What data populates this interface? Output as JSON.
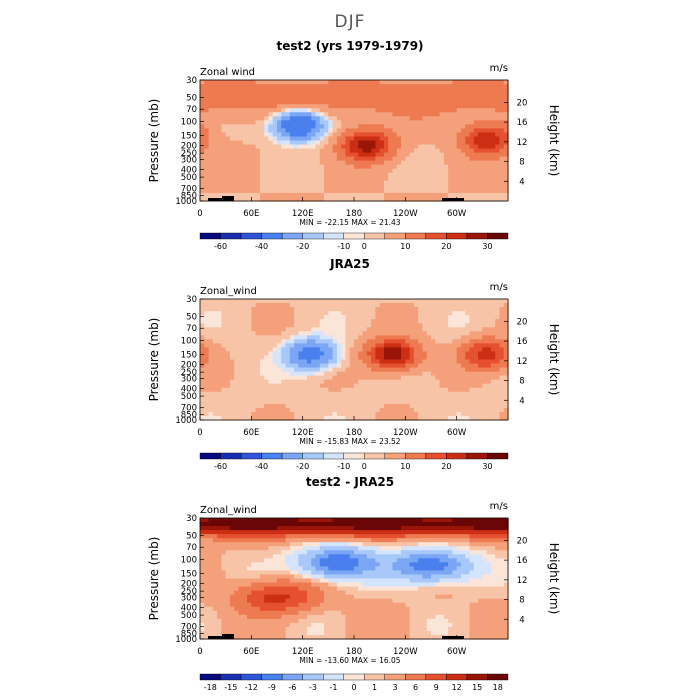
{
  "figure": {
    "title": "DJF"
  },
  "chart_data": [
    {
      "type": "heatmap",
      "title": "test2 (yrs 1979-1979)",
      "left_label": "Zonal wind",
      "units": "m/s",
      "stats": "MIN = -22.15   MAX =  21.43",
      "ylabel": "Pressure (mb)",
      "ylabel_right": "Height (km)",
      "x_ticks": [
        "0",
        "60E",
        "120E",
        "180",
        "120W",
        "60W"
      ],
      "y_ticks": [
        "30",
        "50",
        "70",
        "100",
        "150",
        "200",
        "250",
        "300",
        "400",
        "500",
        "700",
        "850",
        "1000"
      ],
      "height_ticks": [
        "4",
        "8",
        "12",
        "16",
        "20"
      ],
      "colorbar_labels": [
        "-60",
        "-40",
        "-20",
        "-10",
        "0",
        "10",
        "20",
        "30"
      ],
      "colorbar_colors": [
        "#08087f",
        "#1a2fb0",
        "#2d55d6",
        "#4a7fee",
        "#7aa6f4",
        "#a8c8fa",
        "#d4e4fc",
        "#fbe5d8",
        "#f8c4a8",
        "#f4a07a",
        "#ee7a52",
        "#e55030",
        "#cc2e15",
        "#9a1508",
        "#6a0606"
      ],
      "x_range": [
        0,
        360
      ],
      "y_range_mb": [
        1000,
        30
      ],
      "features": [
        {
          "kind": "min",
          "x": 115,
          "p": 110,
          "value": -22
        },
        {
          "kind": "max",
          "x": 195,
          "p": 200,
          "value": 21
        },
        {
          "kind": "max",
          "x": 335,
          "p": 170,
          "value": 18
        }
      ]
    },
    {
      "type": "heatmap",
      "title": "JRA25",
      "left_label": "Zonal_wind",
      "units": "m/s",
      "stats": "MIN = -15.83   MAX =  23.52",
      "ylabel": "Pressure (mb)",
      "ylabel_right": "Height (km)",
      "x_ticks": [
        "0",
        "60E",
        "120E",
        "180",
        "120W",
        "60W"
      ],
      "y_ticks": [
        "30",
        "50",
        "70",
        "100",
        "150",
        "200",
        "250",
        "300",
        "400",
        "500",
        "700",
        "850",
        "1000"
      ],
      "height_ticks": [
        "4",
        "8",
        "12",
        "16",
        "20"
      ],
      "colorbar_labels": [
        "-60",
        "-40",
        "-20",
        "-10",
        "0",
        "10",
        "20",
        "30"
      ],
      "colorbar_colors": [
        "#08087f",
        "#1a2fb0",
        "#2d55d6",
        "#4a7fee",
        "#7aa6f4",
        "#a8c8fa",
        "#d4e4fc",
        "#fbe5d8",
        "#f8c4a8",
        "#f4a07a",
        "#ee7a52",
        "#e55030",
        "#cc2e15",
        "#9a1508",
        "#6a0606"
      ],
      "x_range": [
        0,
        360
      ],
      "y_range_mb": [
        1000,
        30
      ],
      "features": [
        {
          "kind": "min",
          "x": 130,
          "p": 150,
          "value": -15
        },
        {
          "kind": "max",
          "x": 225,
          "p": 150,
          "value": 23
        },
        {
          "kind": "max",
          "x": 335,
          "p": 150,
          "value": 16
        }
      ]
    },
    {
      "type": "heatmap",
      "title": "test2 - JRA25",
      "left_label": "Zonal_wind",
      "units": "m/s",
      "stats": "MIN = -13.60   MAX =  16.05",
      "ylabel": "Pressure (mb)",
      "ylabel_right": "Height (km)",
      "x_ticks": [
        "0",
        "60E",
        "120E",
        "180",
        "120W",
        "60W"
      ],
      "y_ticks": [
        "30",
        "50",
        "70",
        "100",
        "150",
        "200",
        "250",
        "300",
        "400",
        "500",
        "700",
        "850",
        "1000"
      ],
      "height_ticks": [
        "4",
        "8",
        "12",
        "16",
        "20"
      ],
      "colorbar_labels": [
        "-18",
        "-15",
        "-12",
        "-9",
        "-6",
        "-3",
        "-1",
        "0",
        "1",
        "3",
        "6",
        "9",
        "12",
        "15",
        "18"
      ],
      "colorbar_colors": [
        "#08087f",
        "#1a2fb0",
        "#2d55d6",
        "#4a7fee",
        "#7aa6f4",
        "#a8c8fa",
        "#d4e4fc",
        "#fbe5d8",
        "#f8c4a8",
        "#f4a07a",
        "#ee7a52",
        "#e55030",
        "#cc2e15",
        "#9a1508",
        "#6a0606"
      ],
      "x_range": [
        0,
        360
      ],
      "y_range_mb": [
        1000,
        30
      ],
      "features": [
        {
          "kind": "band_max",
          "x": 180,
          "p": 35,
          "value": 16
        },
        {
          "kind": "min",
          "x": 160,
          "p": 110,
          "value": -13
        },
        {
          "kind": "min",
          "x": 270,
          "p": 120,
          "value": -13
        },
        {
          "kind": "max",
          "x": 90,
          "p": 300,
          "value": 9
        }
      ]
    }
  ]
}
